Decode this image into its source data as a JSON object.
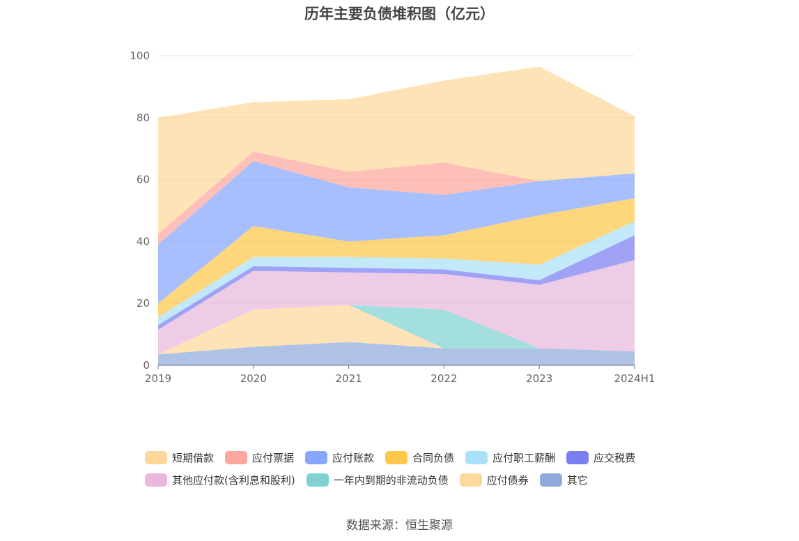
{
  "chart_data": {
    "type": "area",
    "stacked": true,
    "title": "历年主要负债堆积图（亿元）",
    "categories": [
      "2019",
      "2020",
      "2021",
      "2022",
      "2023",
      "2024H1"
    ],
    "ylim": [
      0,
      100
    ],
    "yticks": [
      0,
      20,
      40,
      60,
      80,
      100
    ],
    "grid": true,
    "legend_position": "bottom",
    "series": [
      {
        "name": "其它",
        "color": "#8eaadb",
        "values": [
          3.5,
          6.0,
          7.5,
          5.5,
          5.5,
          4.5
        ]
      },
      {
        "name": "应付债券",
        "color": "#fdd89a",
        "values": [
          0,
          12.0,
          12.0,
          0,
          0,
          0
        ]
      },
      {
        "name": "一年内到期的非流动负债",
        "color": "#80d2d2",
        "values": [
          0,
          0,
          0,
          12.5,
          0,
          0
        ]
      },
      {
        "name": "其他应付款(含利息和股利)",
        "color": "#e9b8dc",
        "values": [
          8.0,
          12.5,
          10.5,
          11.5,
          20.5,
          29.5
        ]
      },
      {
        "name": "应交税费",
        "color": "#7b7ef1",
        "values": [
          1.5,
          1.5,
          1.5,
          1.5,
          1.5,
          8.0
        ]
      },
      {
        "name": "应付职工薪酬",
        "color": "#a9e1f8",
        "values": [
          2.5,
          3.0,
          3.5,
          3.5,
          5.0,
          4.5
        ]
      },
      {
        "name": "合同负债",
        "color": "#fdc849",
        "values": [
          4.5,
          10.0,
          5.0,
          7.5,
          16.0,
          7.5
        ]
      },
      {
        "name": "应付账款",
        "color": "#87a6fd",
        "values": [
          19.0,
          21.0,
          17.5,
          13.0,
          11.0,
          8.0
        ]
      },
      {
        "name": "应付票据",
        "color": "#fca69c",
        "values": [
          3.5,
          3.0,
          5.0,
          10.5,
          0,
          0
        ]
      },
      {
        "name": "短期借款",
        "color": "#fdd89a",
        "values": [
          37.5,
          16.0,
          23.5,
          26.5,
          37.0,
          18.5
        ]
      }
    ]
  },
  "legend": [
    [
      {
        "label": "短期借款",
        "color": "#fdd89a"
      },
      {
        "label": "应付票据",
        "color": "#fca69c"
      },
      {
        "label": "应付账款",
        "color": "#87a6fd"
      },
      {
        "label": "合同负债",
        "color": "#fdc849"
      },
      {
        "label": "应付职工薪酬",
        "color": "#a9e1f8"
      },
      {
        "label": "应交税费",
        "color": "#7b7ef1"
      }
    ],
    [
      {
        "label": "其他应付款(含利息和股利)",
        "color": "#e9b8dc"
      },
      {
        "label": "一年内到期的非流动负债",
        "color": "#80d2d2"
      },
      {
        "label": "应付债券",
        "color": "#fdd89a"
      },
      {
        "label": "其它",
        "color": "#8eaadb"
      }
    ]
  ],
  "source": "数据来源：恒生聚源"
}
